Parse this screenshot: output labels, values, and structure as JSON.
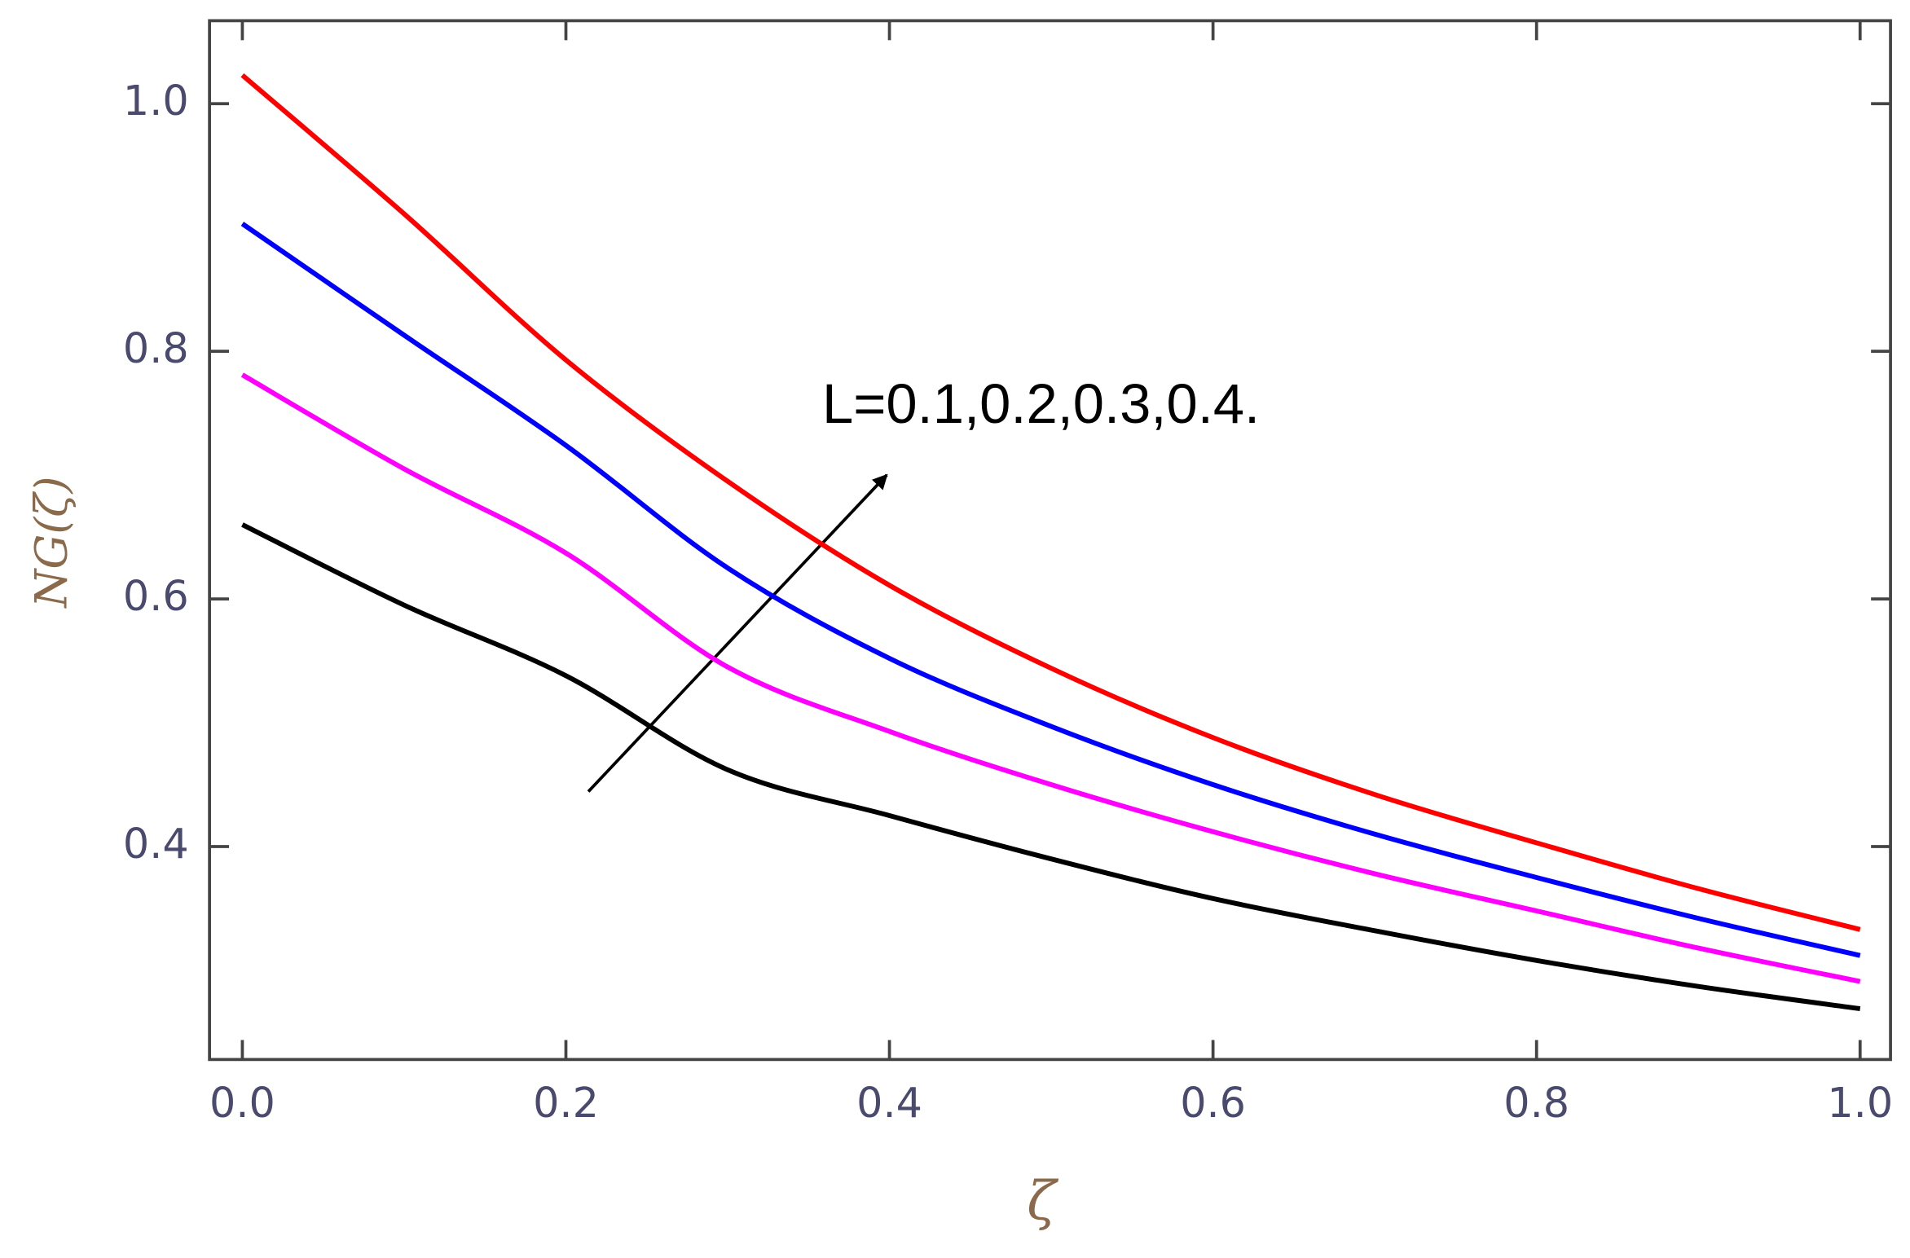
{
  "chart_data": {
    "type": "line",
    "xlabel": "ζ",
    "ylabel": "NG(ζ)",
    "annotation": "L=0.1,0.2,0.3,0.4.",
    "x": [
      0,
      0.1,
      0.2,
      0.3,
      0.4,
      0.5,
      0.6,
      0.7,
      0.8,
      0.9,
      1.0
    ],
    "series": [
      {
        "color": "#ff0000",
        "values": [
          1.023,
          0.911,
          0.793,
          0.695,
          0.611,
          0.544,
          0.488,
          0.442,
          0.403,
          0.366,
          0.333
        ]
      },
      {
        "color": "#0000ff",
        "values": [
          0.903,
          0.813,
          0.724,
          0.625,
          0.552,
          0.497,
          0.45,
          0.41,
          0.375,
          0.342,
          0.312
        ]
      },
      {
        "color": "#ff00ff",
        "values": [
          0.781,
          0.705,
          0.637,
          0.545,
          0.493,
          0.45,
          0.412,
          0.378,
          0.348,
          0.318,
          0.291
        ]
      },
      {
        "color": "#000000",
        "values": [
          0.66,
          0.595,
          0.538,
          0.462,
          0.425,
          0.39,
          0.358,
          0.332,
          0.308,
          0.287,
          0.269
        ]
      }
    ],
    "xlim": [
      -0.0203,
      1.0188
    ],
    "ylim": [
      0.228,
      1.067
    ],
    "xticks": [
      {
        "value": 0,
        "label": "0.0"
      },
      0.2,
      0.4,
      0.6,
      0.8,
      {
        "value": 1,
        "label": "1.0"
      }
    ],
    "yticks": [
      0.4,
      0.6,
      0.8,
      {
        "value": 1,
        "label": "1.0"
      }
    ]
  }
}
